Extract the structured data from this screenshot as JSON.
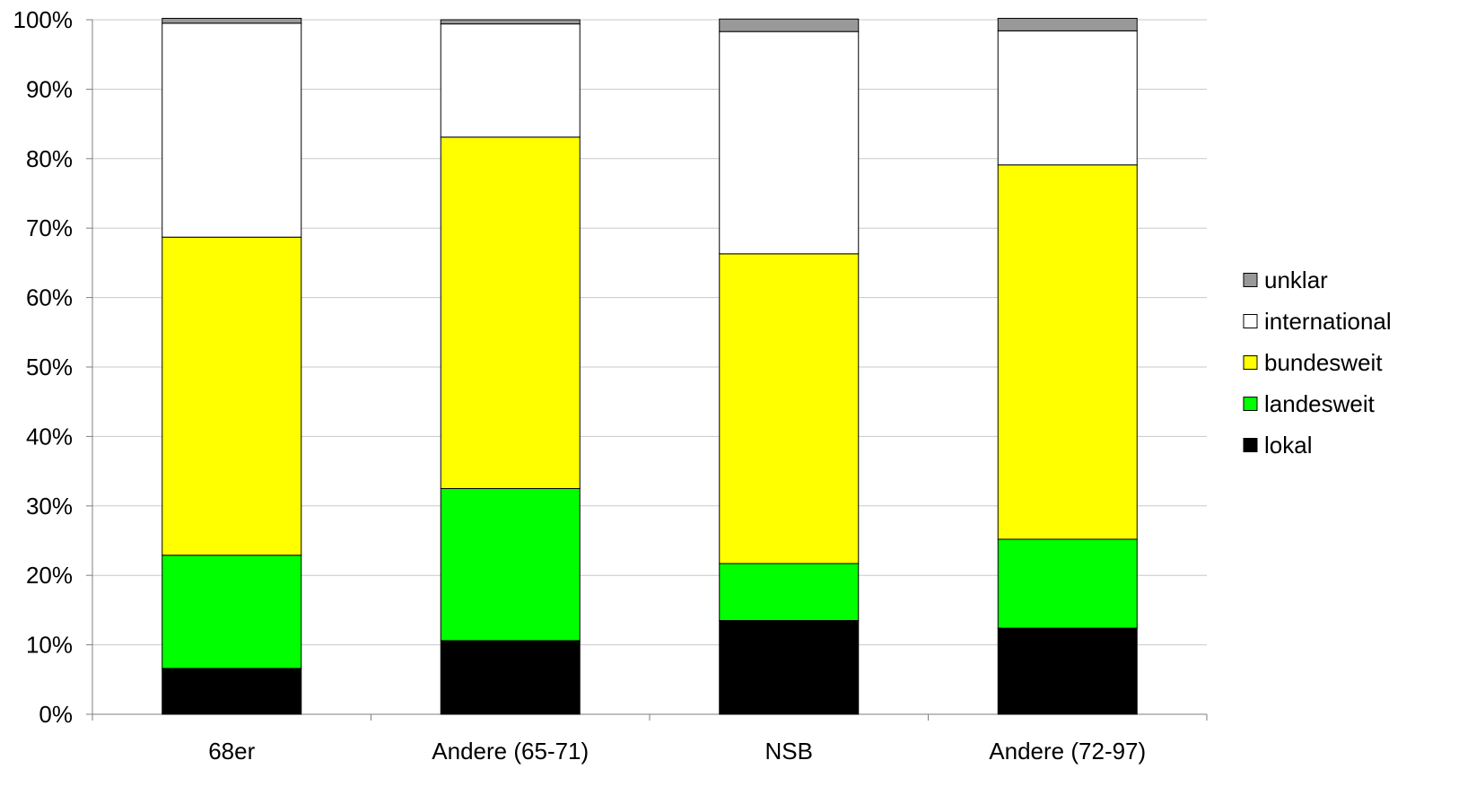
{
  "chart_data": {
    "type": "bar",
    "stacked": "percent",
    "categories": [
      "68er",
      "Andere (65-71)",
      "NSB",
      "Andere (72-97)"
    ],
    "series": [
      {
        "name": "lokal",
        "color": "#000000",
        "values": [
          6.6,
          10.6,
          13.5,
          12.4
        ]
      },
      {
        "name": "landesweit",
        "color": "#00ff00",
        "values": [
          16.3,
          21.9,
          8.2,
          12.8
        ]
      },
      {
        "name": "bundesweit",
        "color": "#ffff00",
        "values": [
          45.8,
          50.6,
          44.6,
          53.9
        ]
      },
      {
        "name": "international",
        "color": "#ffffff",
        "values": [
          30.8,
          16.3,
          32.0,
          19.3
        ]
      },
      {
        "name": "unklar",
        "color": "#999999",
        "values": [
          0.7,
          0.6,
          1.8,
          1.8
        ]
      }
    ],
    "ylim": [
      0,
      100
    ],
    "yticks": [
      "0%",
      "10%",
      "20%",
      "30%",
      "40%",
      "50%",
      "60%",
      "70%",
      "80%",
      "90%",
      "100%"
    ],
    "grid": true,
    "legend_position": "right",
    "legend_order": [
      "unklar",
      "international",
      "bundesweit",
      "landesweit",
      "lokal"
    ],
    "xlabel": "",
    "ylabel": "",
    "title": ""
  }
}
